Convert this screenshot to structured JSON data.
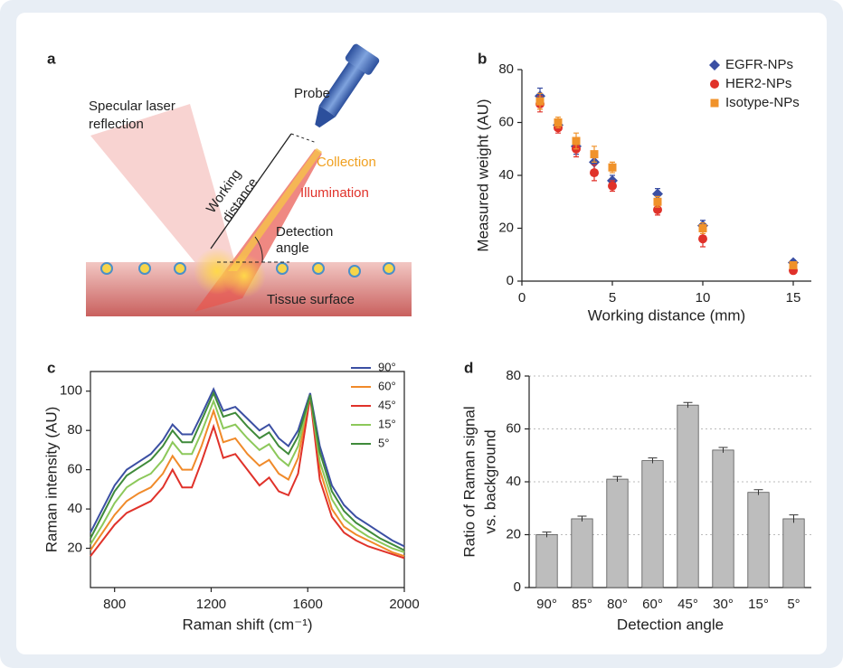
{
  "diagram": {
    "label": "a",
    "texts": [
      "Probe",
      "Specular laser",
      "reflection",
      "Working",
      "distance",
      "Collection",
      "Illumination",
      "Detection",
      "angle",
      "Tissue surface"
    ]
  },
  "chart_data": [
    {
      "type": "scatter",
      "label": "b",
      "xlabel": "Working distance (mm)",
      "ylabel": "Measured weight (AU)",
      "x": [
        1,
        2,
        3,
        4,
        5,
        7.5,
        10,
        15
      ],
      "series": [
        {
          "name": "EGFR-NPs",
          "color": "#3b4fa3",
          "marker": "diamond",
          "values": [
            70,
            59,
            51,
            45,
            38,
            33,
            21,
            7
          ],
          "errors": [
            3,
            2,
            3,
            3,
            2,
            2,
            2,
            1
          ]
        },
        {
          "name": "HER2-NPs",
          "color": "#e0322a",
          "marker": "circle",
          "values": [
            67,
            58,
            50,
            41,
            36,
            27,
            16,
            4
          ],
          "errors": [
            3,
            2,
            3,
            3,
            2,
            2,
            3,
            1
          ]
        },
        {
          "name": "Isotype-NPs",
          "color": "#f0922a",
          "marker": "square",
          "values": [
            68,
            60,
            53,
            48,
            43,
            30,
            20,
            6
          ],
          "errors": [
            3,
            2,
            3,
            3,
            2,
            2,
            2,
            1
          ]
        }
      ],
      "xlim": [
        0,
        16
      ],
      "xticks": [
        0,
        5,
        10,
        15
      ],
      "ylim": [
        0,
        80
      ],
      "yticks": [
        0,
        20,
        40,
        60,
        80
      ]
    },
    {
      "type": "line",
      "label": "c",
      "xlabel": "Raman shift (cm⁻¹)",
      "ylabel": "Raman intensity (AU)",
      "x": [
        700,
        750,
        800,
        850,
        900,
        950,
        1000,
        1040,
        1080,
        1120,
        1160,
        1210,
        1250,
        1300,
        1350,
        1400,
        1440,
        1480,
        1520,
        1560,
        1610,
        1650,
        1700,
        1750,
        1800,
        1850,
        1900,
        1950,
        2000
      ],
      "series": [
        {
          "name": "90°",
          "color": "#3b4fa3",
          "values": [
            28,
            40,
            52,
            60,
            64,
            68,
            75,
            83,
            78,
            78,
            88,
            101,
            90,
            92,
            86,
            80,
            83,
            76,
            72,
            80,
            99,
            72,
            52,
            42,
            36,
            32,
            28,
            24,
            21
          ]
        },
        {
          "name": "60°",
          "color": "#f08a2a",
          "values": [
            19,
            28,
            37,
            44,
            48,
            51,
            58,
            67,
            60,
            60,
            72,
            90,
            74,
            76,
            68,
            62,
            65,
            58,
            55,
            66,
            98,
            60,
            40,
            31,
            27,
            24,
            21,
            18,
            16
          ]
        },
        {
          "name": "45°",
          "color": "#e0322a",
          "values": [
            16,
            24,
            32,
            38,
            41,
            44,
            51,
            60,
            51,
            51,
            64,
            82,
            66,
            68,
            60,
            52,
            56,
            49,
            47,
            58,
            97,
            55,
            36,
            28,
            24,
            21,
            19,
            17,
            15
          ]
        },
        {
          "name": "15°",
          "color": "#8cc85a",
          "values": [
            22,
            32,
            43,
            51,
            55,
            58,
            65,
            74,
            68,
            68,
            79,
            95,
            81,
            83,
            76,
            70,
            73,
            66,
            62,
            72,
            98,
            64,
            45,
            35,
            30,
            26,
            23,
            20,
            18
          ]
        },
        {
          "name": "5°",
          "color": "#3f8a3a",
          "values": [
            25,
            37,
            49,
            57,
            61,
            65,
            72,
            80,
            74,
            74,
            85,
            99,
            87,
            89,
            82,
            76,
            79,
            72,
            68,
            77,
            98,
            69,
            49,
            39,
            33,
            29,
            25,
            22,
            19
          ]
        }
      ],
      "xlim": [
        700,
        2000
      ],
      "xticks": [
        800,
        1200,
        1600,
        2000
      ],
      "ylim": [
        0,
        110
      ],
      "yticks": [
        20,
        40,
        60,
        80,
        100
      ]
    },
    {
      "type": "bar",
      "label": "d",
      "xlabel": "Detection angle",
      "ylabel": [
        "Ratio of Raman signal",
        "vs. background"
      ],
      "categories": [
        "90°",
        "85°",
        "80°",
        "60°",
        "45°",
        "30°",
        "15°",
        "5°"
      ],
      "values": [
        20,
        26,
        41,
        48,
        69,
        52,
        36,
        26
      ],
      "errors": [
        1,
        1,
        1,
        1,
        1,
        1,
        1,
        1.5
      ],
      "color": "#bdbdbd",
      "ylim": [
        0,
        80
      ],
      "yticks": [
        0,
        20,
        40,
        60,
        80
      ],
      "grid": true
    }
  ]
}
